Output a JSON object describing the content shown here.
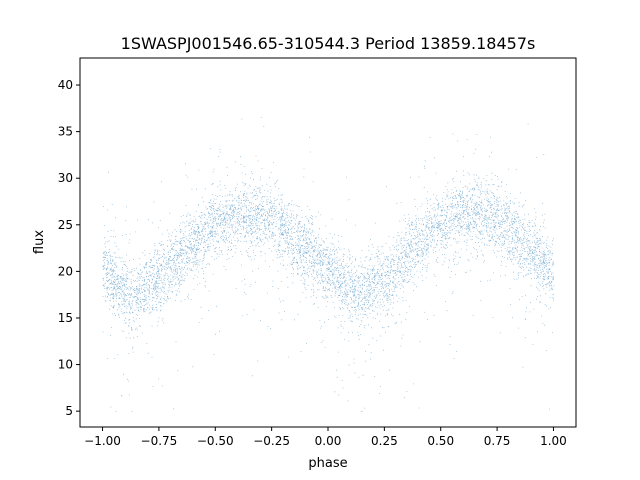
{
  "chart_data": {
    "type": "scatter",
    "title": "1SWASPJ001546.65-310544.3 Period 13859.18457s",
    "xlabel": "phase",
    "ylabel": "flux",
    "xlim": [
      -1.1,
      1.1
    ],
    "ylim": [
      3.3,
      42.9
    ],
    "xticks": [
      -1.0,
      -0.75,
      -0.5,
      -0.25,
      0.0,
      0.25,
      0.5,
      0.75,
      1.0
    ],
    "xtick_labels": [
      "−1.00",
      "−0.75",
      "−0.50",
      "−0.25",
      "0.00",
      "0.25",
      "0.50",
      "0.75",
      "1.00"
    ],
    "yticks": [
      5,
      10,
      15,
      20,
      25,
      30,
      35,
      40
    ],
    "ytick_labels": [
      "5",
      "10",
      "15",
      "20",
      "25",
      "30",
      "35",
      "40"
    ],
    "grid": false,
    "legend": "none",
    "marker_color": "#1f77b4",
    "series": [
      {
        "phase_range": [
          -1.0,
          1.0
        ],
        "trend": {
          "phase": [
            -1.0,
            -0.9,
            -0.85,
            -0.75,
            -0.6,
            -0.5,
            -0.4,
            -0.35,
            -0.25,
            -0.1,
            0.0,
            0.1,
            0.15,
            0.25,
            0.4,
            0.5,
            0.6,
            0.65,
            0.75,
            0.9,
            1.0
          ],
          "flux": [
            20.0,
            18.0,
            17.5,
            19.5,
            23.0,
            25.0,
            26.0,
            26.2,
            25.5,
            22.5,
            20.0,
            18.0,
            17.5,
            19.5,
            23.0,
            25.0,
            26.0,
            26.2,
            25.5,
            22.5,
            20.0
          ]
        },
        "scatter_spread": 2.5,
        "outlier_range": [
          5,
          41
        ]
      }
    ]
  }
}
